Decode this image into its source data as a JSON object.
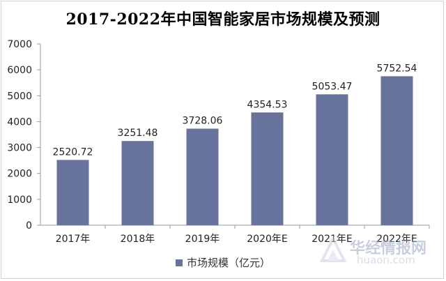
{
  "chart_data": {
    "type": "bar",
    "title": "2017-2022年中国智能家居市场规模及预测",
    "categories": [
      "2017年",
      "2018年",
      "2019年",
      "2020年E",
      "2021年E",
      "2022年E"
    ],
    "series": [
      {
        "name": "市场规模（亿元）",
        "values": [
          2520.72,
          3251.48,
          3728.06,
          4354.53,
          5053.47,
          5752.54
        ],
        "labels": [
          "2520.72",
          "3251.48",
          "3728.06",
          "4354.53",
          "5053.47",
          "5752.54"
        ]
      }
    ],
    "ylim": [
      0,
      7000
    ],
    "yticks": [
      "0",
      "1000",
      "2000",
      "3000",
      "4000",
      "5000",
      "6000",
      "7000"
    ],
    "grid": false,
    "legend_position": "bottom",
    "bar_color": "#67739a"
  },
  "watermark": {
    "brand": "华经情报网",
    "url": "huaon.com"
  }
}
